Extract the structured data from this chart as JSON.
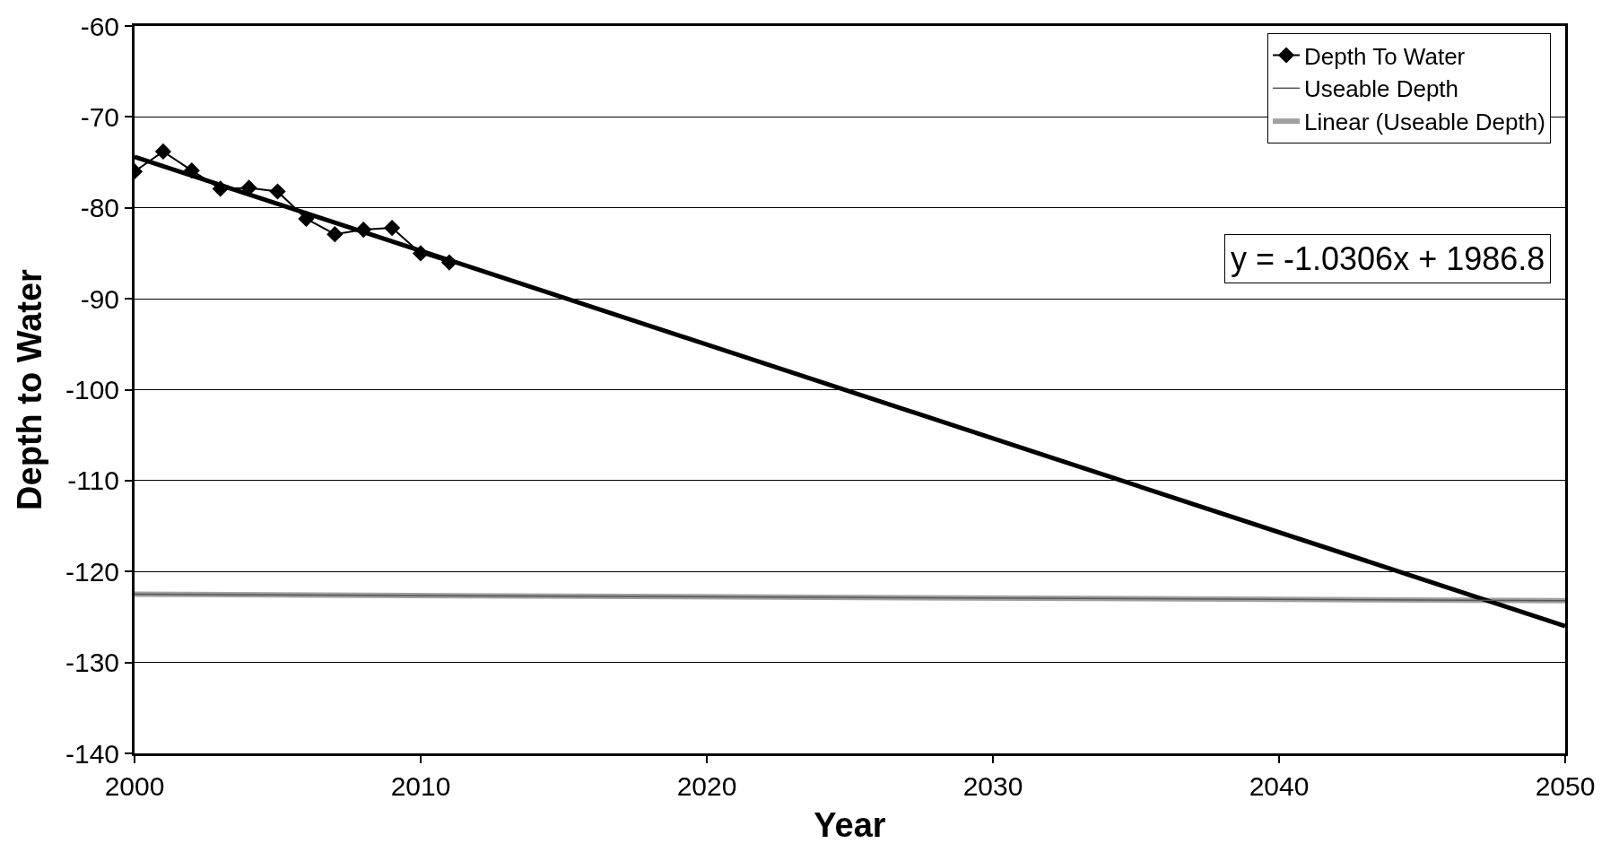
{
  "chart_data": {
    "type": "line",
    "xlabel": "Year",
    "ylabel": "Depth to Water",
    "xlim": [
      2000,
      2050
    ],
    "xticks": [
      2000,
      2010,
      2020,
      2030,
      2040,
      2050
    ],
    "ylim": [
      -140,
      -60
    ],
    "yticks": [
      -140,
      -130,
      -120,
      -110,
      -100,
      -90,
      -80,
      -70,
      -60
    ],
    "grid": "y",
    "legend": "top right",
    "series": [
      {
        "name": "Depth To Water",
        "color": "#000000",
        "marker": "diamond",
        "line_style": "solid",
        "x": [
          2000,
          2001,
          2002,
          2003,
          2004,
          2005,
          2006,
          2007,
          2008,
          2009,
          2010,
          2011
        ],
        "values": [
          -76.0,
          -73.8,
          -75.9,
          -77.9,
          -77.8,
          -78.2,
          -81.2,
          -82.9,
          -82.4,
          -82.2,
          -85.0,
          -86.0
        ]
      },
      {
        "name": "Useable Depth",
        "color": "#555555",
        "marker": "none",
        "line_style": "solid",
        "x": [
          2000,
          2050
        ],
        "values": [
          -122.5,
          -123.2
        ]
      },
      {
        "name": "Linear (Useable Depth)",
        "color": "#a0a0a0",
        "marker": "none",
        "line_style": "solid",
        "x": [
          2000,
          2050
        ],
        "values": [
          -122.5,
          -123.2
        ]
      },
      {
        "color": "#000000",
        "marker": "none",
        "line_style": "solid",
        "x": [
          2000,
          2050
        ],
        "values": [
          -74.4,
          -126.0
        ]
      }
    ],
    "annotations": [
      "y = -1.0306x + 1986.8"
    ]
  }
}
